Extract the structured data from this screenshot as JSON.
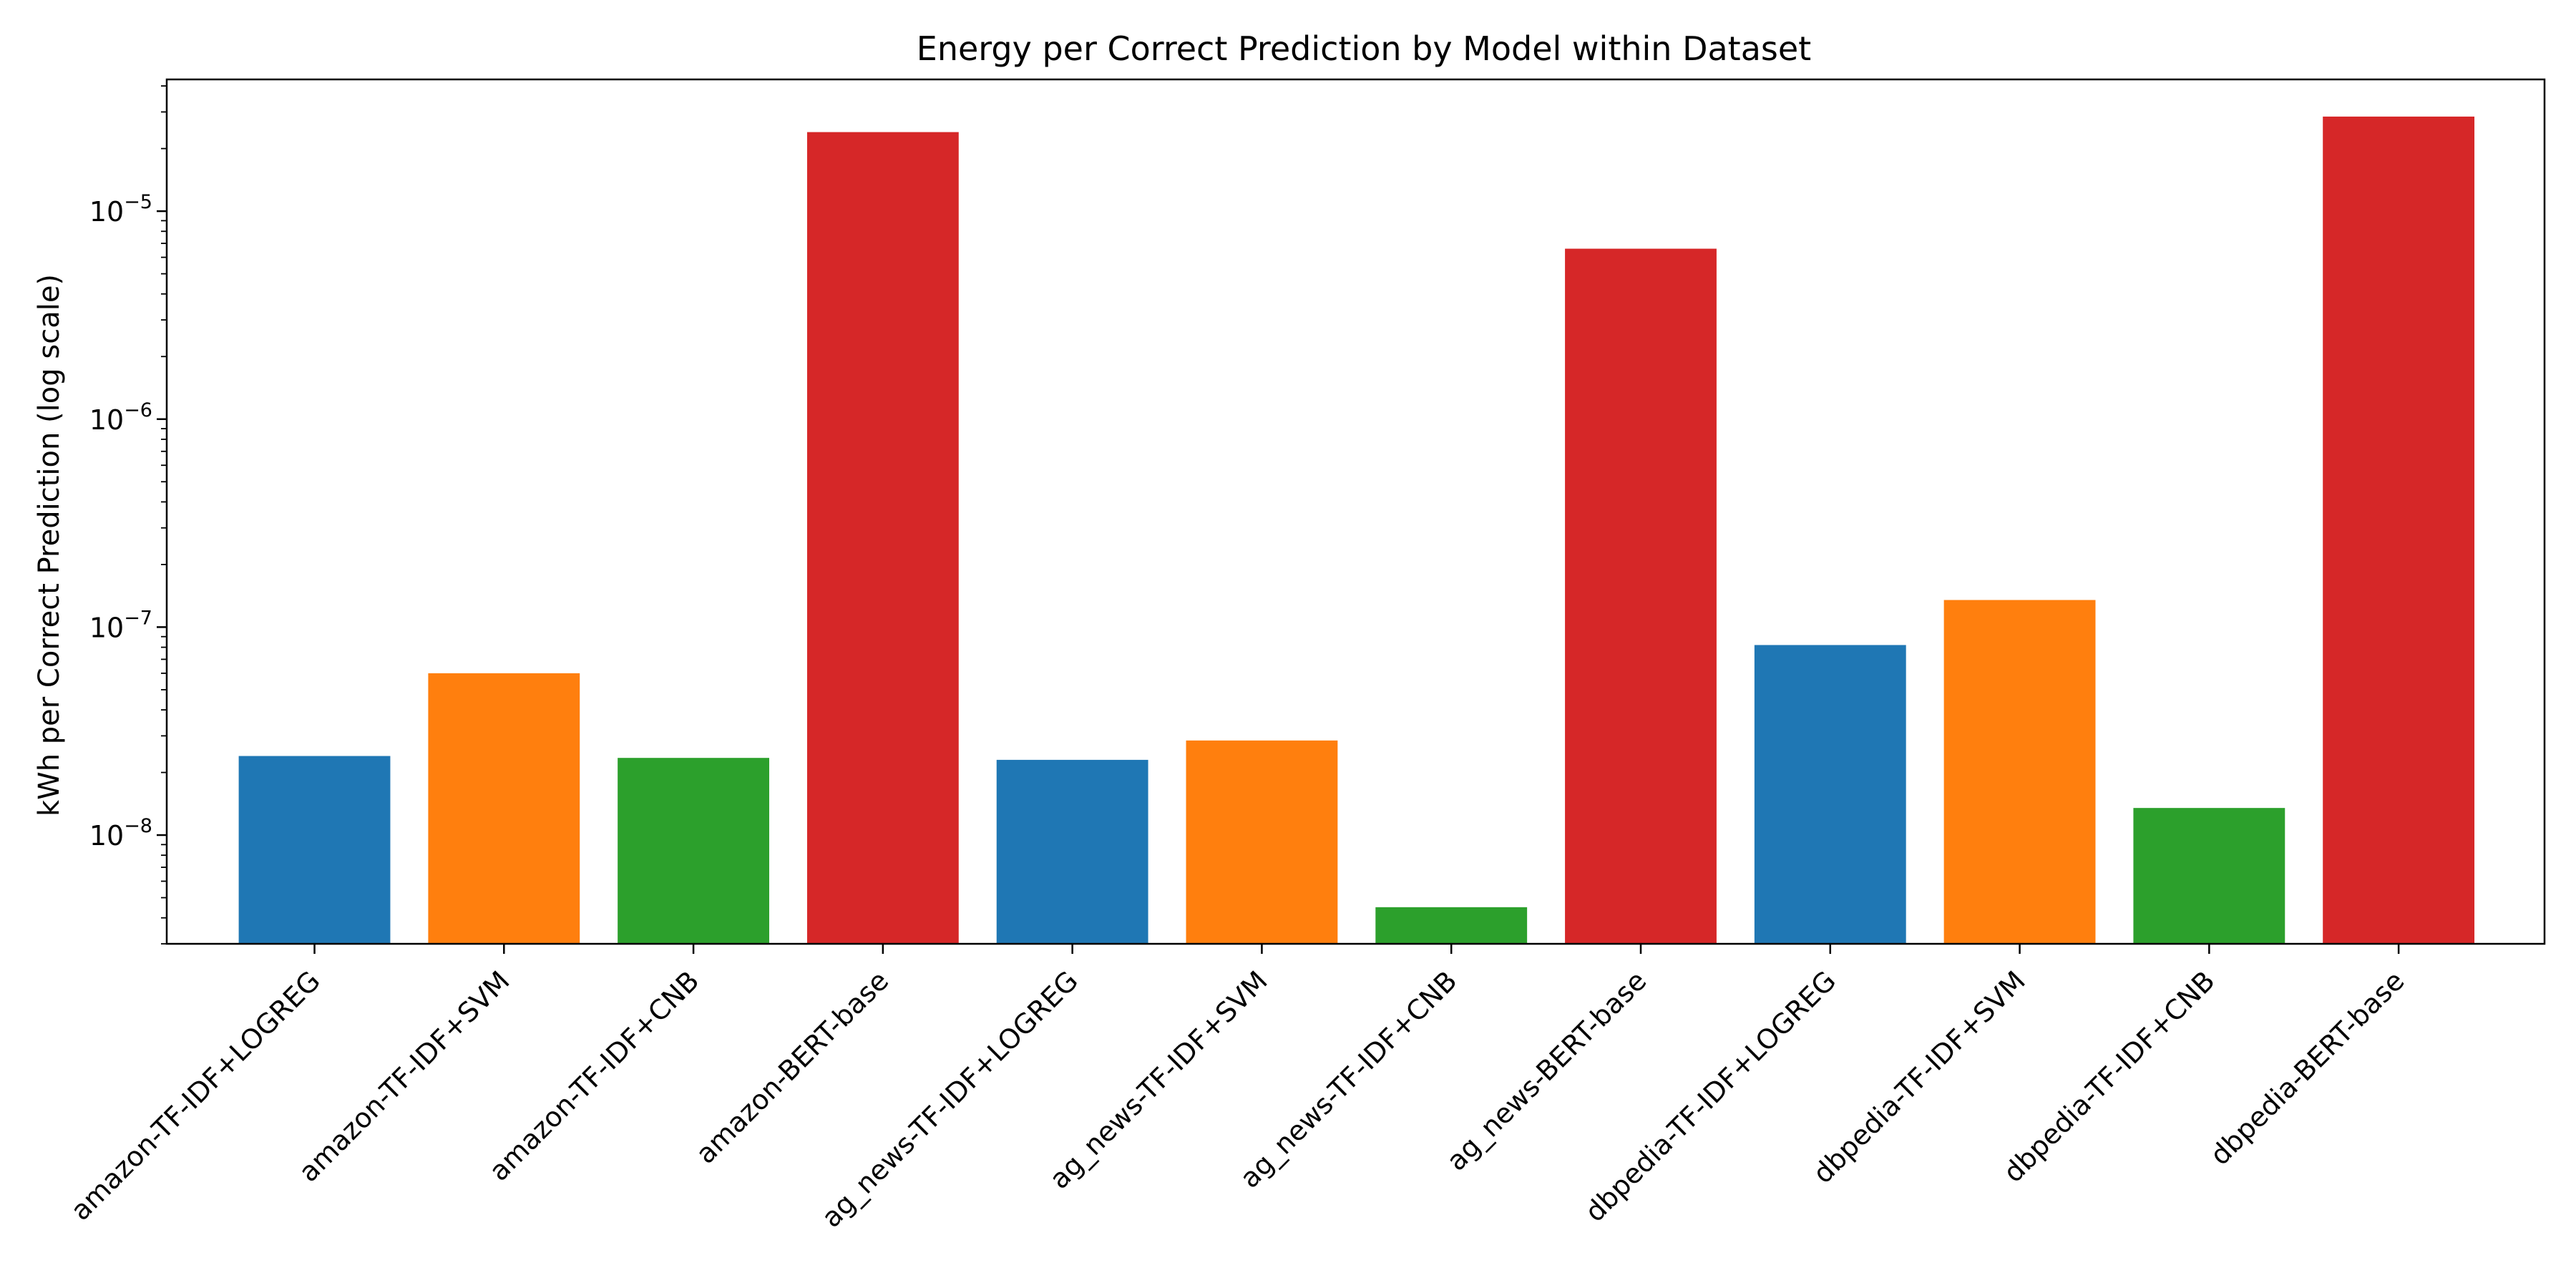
{
  "chart_data": {
    "type": "bar",
    "title": "Energy per Correct Prediction by Model within Dataset",
    "xlabel": "",
    "ylabel": "kWh per Correct Prediction (log scale)",
    "yscale": "log",
    "ylim": [
      3e-09,
      4.3e-05
    ],
    "yticks": [
      {
        "value": 1e-08,
        "base": "10",
        "exp": "−8"
      },
      {
        "value": 1e-07,
        "base": "10",
        "exp": "−7"
      },
      {
        "value": 1e-06,
        "base": "10",
        "exp": "−6"
      },
      {
        "value": 1e-05,
        "base": "10",
        "exp": "−5"
      }
    ],
    "grid": false,
    "legend": "none",
    "categories": [
      "amazon-TF-IDF+LOGREG",
      "amazon-TF-IDF+SVM",
      "amazon-TF-IDF+CNB",
      "amazon-BERT-base",
      "ag_news-TF-IDF+LOGREG",
      "ag_news-TF-IDF+SVM",
      "ag_news-TF-IDF+CNB",
      "ag_news-BERT-base",
      "dbpedia-TF-IDF+LOGREG",
      "dbpedia-TF-IDF+SVM",
      "dbpedia-TF-IDF+CNB",
      "dbpedia-BERT-base"
    ],
    "values": [
      2.4e-08,
      6e-08,
      2.35e-08,
      2.4e-05,
      2.3e-08,
      2.85e-08,
      4.5e-09,
      6.6e-06,
      8.2e-08,
      1.35e-07,
      1.35e-08,
      2.85e-05
    ],
    "colors": [
      "#1f77b4",
      "#ff7f0e",
      "#2ca02c",
      "#d62728",
      "#1f77b4",
      "#ff7f0e",
      "#2ca02c",
      "#d62728",
      "#1f77b4",
      "#ff7f0e",
      "#2ca02c",
      "#d62728"
    ]
  }
}
